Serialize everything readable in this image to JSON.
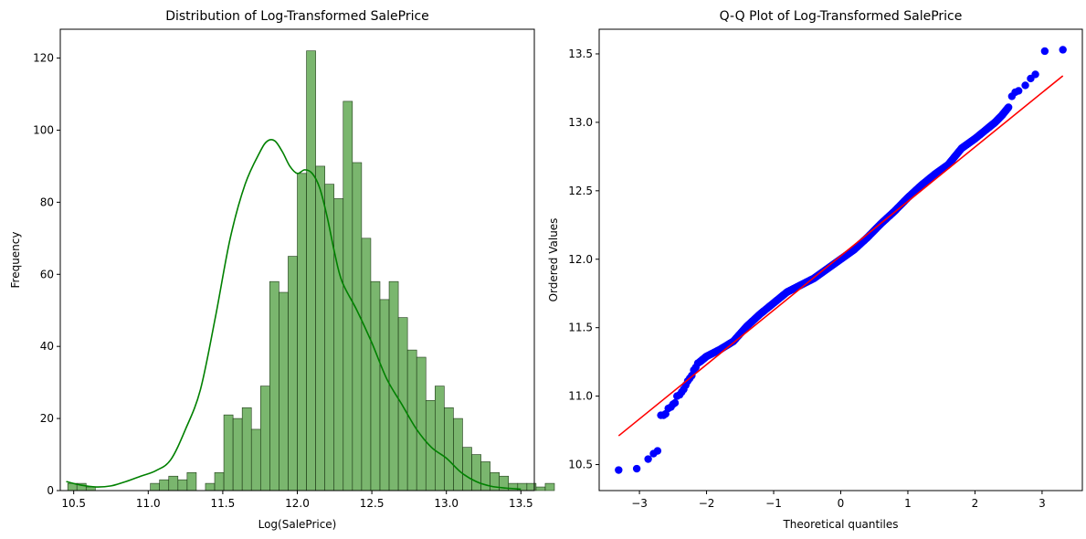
{
  "chart_data": [
    {
      "type": "bar",
      "subtype": "histogram-with-kde",
      "title": "Distribution of Log-Transformed SalePrice",
      "xlabel": "Log(SalePrice)",
      "ylabel": "Frequency",
      "xlim": [
        10.41,
        13.59
      ],
      "ylim": [
        0,
        128
      ],
      "xticks": [
        10.5,
        11.0,
        11.5,
        12.0,
        12.5,
        13.0,
        13.5
      ],
      "xtick_labels": [
        "10.5",
        "11.0",
        "11.5",
        "12.0",
        "12.5",
        "13.0",
        "13.5"
      ],
      "yticks": [
        0,
        20,
        40,
        60,
        80,
        100,
        120
      ],
      "ytick_labels": [
        "0",
        "20",
        "40",
        "60",
        "80",
        "100",
        "120"
      ],
      "bin_start": 10.46,
      "bin_width": 0.0616,
      "counts": [
        2,
        2,
        1,
        0,
        0,
        0,
        0,
        0,
        0,
        2,
        3,
        4,
        3,
        5,
        0,
        2,
        5,
        21,
        20,
        23,
        17,
        29,
        58,
        55,
        65,
        88,
        122,
        90,
        85,
        81,
        108,
        91,
        70,
        58,
        53,
        58,
        48,
        39,
        37,
        25,
        29,
        23,
        20,
        12,
        10,
        8,
        5,
        4,
        2,
        2,
        2,
        1,
        2
      ],
      "bar_color": "#4d9e3d",
      "kde_color": "#008000",
      "kde": {
        "x": [
          10.45,
          10.55,
          10.65,
          10.75,
          10.85,
          10.95,
          11.05,
          11.15,
          11.25,
          11.35,
          11.45,
          11.55,
          11.65,
          11.75,
          11.8,
          11.85,
          11.9,
          11.95,
          12.0,
          12.05,
          12.1,
          12.15,
          12.2,
          12.25,
          12.3,
          12.4,
          12.5,
          12.6,
          12.7,
          12.8,
          12.9,
          13.0,
          13.1,
          13.2,
          13.3,
          13.4,
          13.5
        ],
        "y": [
          2.5,
          1.5,
          1.0,
          1.3,
          2.5,
          4.0,
          5.5,
          8.5,
          17,
          28,
          48,
          70,
          85,
          94,
          97,
          97,
          94,
          90,
          88,
          89,
          88,
          84,
          76,
          66,
          58,
          50,
          41,
          31,
          24,
          17,
          12,
          9,
          5,
          2.5,
          1.2,
          0.7,
          0.4
        ]
      },
      "grid": false,
      "legend": false
    },
    {
      "type": "scatter",
      "subtype": "qq-plot",
      "title": "Q-Q Plot of Log-Transformed SalePrice",
      "xlabel": "Theoretical quantiles",
      "ylabel": "Ordered Values",
      "xlim": [
        -3.6,
        3.6
      ],
      "ylim": [
        10.31,
        13.68
      ],
      "xticks": [
        -3,
        -2,
        -1,
        0,
        1,
        2,
        3
      ],
      "xtick_labels": [
        "−3",
        "−2",
        "−1",
        "0",
        "1",
        "2",
        "3"
      ],
      "yticks": [
        10.5,
        11.0,
        11.5,
        12.0,
        12.5,
        13.0,
        13.5
      ],
      "ytick_labels": [
        "10.5",
        "11.0",
        "11.5",
        "12.0",
        "12.5",
        "13.0",
        "13.5"
      ],
      "point_color": "#0000ff",
      "line_color": "#ff0000",
      "fit_line": {
        "x": [
          -3.31,
          3.31
        ],
        "y": [
          10.71,
          13.34
        ]
      },
      "quantile_curve": {
        "x": [
          -2.1,
          -2.0,
          -1.8,
          -1.6,
          -1.4,
          -1.2,
          -1.0,
          -0.8,
          -0.6,
          -0.4,
          -0.2,
          0.0,
          0.2,
          0.4,
          0.6,
          0.8,
          1.0,
          1.2,
          1.4,
          1.6,
          1.8,
          2.0,
          2.2,
          2.3,
          2.4,
          2.5
        ],
        "y": [
          11.25,
          11.29,
          11.34,
          11.4,
          11.51,
          11.6,
          11.68,
          11.76,
          11.81,
          11.86,
          11.93,
          12.0,
          12.07,
          12.16,
          12.26,
          12.35,
          12.45,
          12.54,
          12.62,
          12.69,
          12.81,
          12.88,
          12.96,
          13.0,
          13.05,
          13.11
        ]
      },
      "tail_points": {
        "x": [
          -3.31,
          -3.04,
          -2.87,
          -2.79,
          -2.73,
          -2.68,
          -2.64,
          -2.61,
          -2.57,
          -2.53,
          -2.5,
          -2.47,
          -2.44,
          -2.4,
          -2.37,
          -2.34,
          -2.31,
          -2.28,
          -2.25,
          -2.22,
          -2.19,
          -2.16,
          -2.13,
          2.55,
          2.6,
          2.65,
          2.75,
          2.83,
          2.9,
          3.04,
          3.31
        ],
        "y": [
          10.46,
          10.47,
          10.54,
          10.58,
          10.6,
          10.86,
          10.86,
          10.87,
          10.91,
          10.92,
          10.94,
          10.95,
          11.0,
          11.01,
          11.03,
          11.05,
          11.08,
          11.11,
          11.13,
          11.15,
          11.19,
          11.21,
          11.24,
          13.19,
          13.22,
          13.23,
          13.27,
          13.32,
          13.35,
          13.52,
          13.53
        ]
      },
      "grid": false,
      "legend": false
    }
  ]
}
